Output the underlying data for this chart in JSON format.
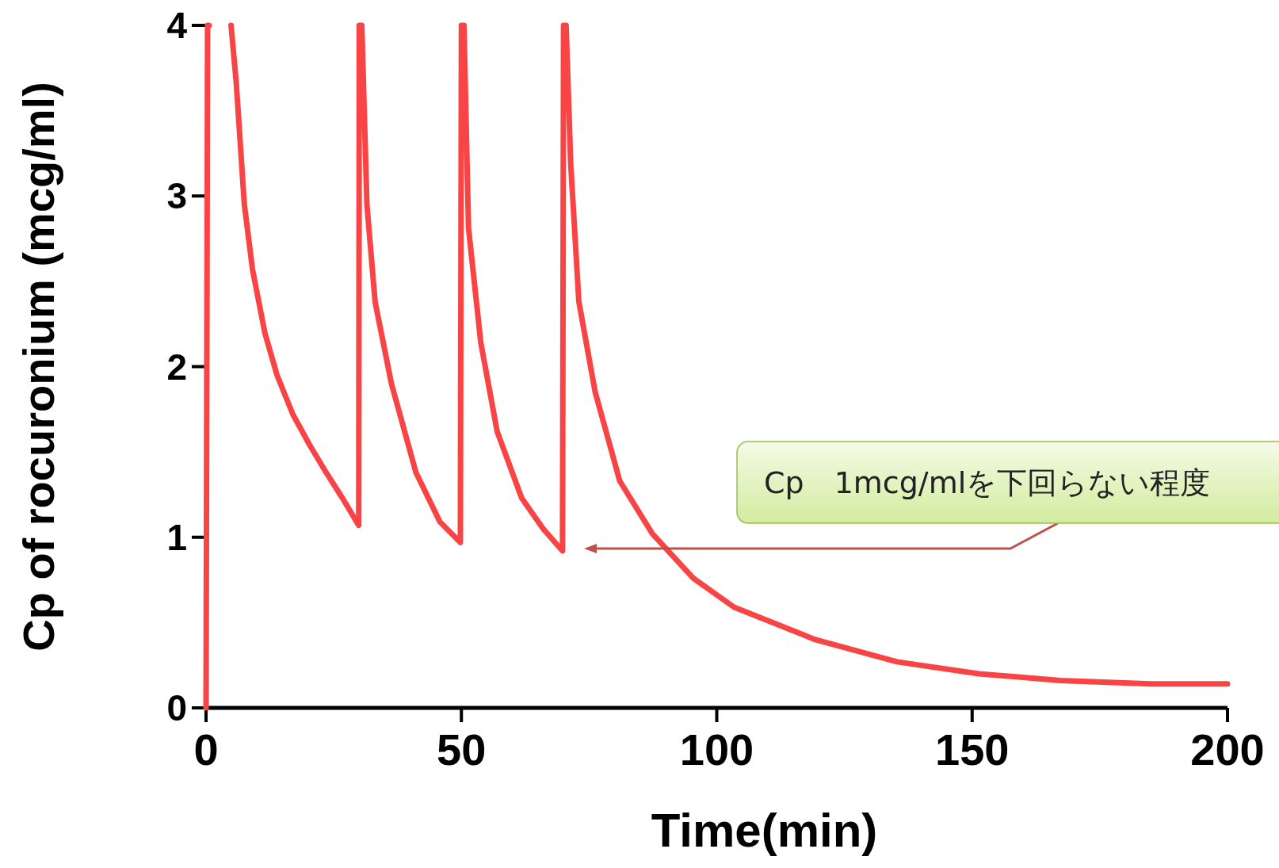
{
  "chart_data": {
    "type": "line",
    "xlabel": "Time(min)",
    "ylabel": "Cp of rocuronium (mcg/ml)",
    "xlim": [
      0,
      200
    ],
    "ylim": [
      0,
      4
    ],
    "xticks": [
      0,
      50,
      100,
      150,
      200
    ],
    "yticks": [
      0,
      1,
      2,
      3,
      4
    ],
    "grid": false,
    "marker": "none",
    "line_style": "solid",
    "annotations": [
      "Cp　1mcg/mlを下回らない程度"
    ],
    "series": [
      {
        "color": "#f84444",
        "x": [
          0,
          0.3,
          0.6,
          0.7,
          4.9,
          5.9,
          7.5,
          9.1,
          11.5,
          13.9,
          17,
          20.3,
          23.5,
          26.7,
          29.9,
          30,
          30.5,
          31.5,
          33.1,
          36.3,
          41.1,
          45.8,
          49.8,
          50,
          50.5,
          51.4,
          53.8,
          57,
          61.8,
          66,
          69.8,
          70,
          70.5,
          71.4,
          73,
          76.2,
          81,
          87.4,
          95.4,
          103.4,
          119.3,
          135.3,
          151.3,
          167.3,
          185,
          200
        ],
        "values": [
          0,
          4,
          4,
          null,
          4,
          3.67,
          2.95,
          2.57,
          2.2,
          1.95,
          1.72,
          1.54,
          1.38,
          1.23,
          1.07,
          4,
          4,
          2.95,
          2.38,
          1.9,
          1.38,
          1.09,
          0.97,
          4,
          4,
          2.81,
          2.14,
          1.62,
          1.23,
          1.05,
          0.92,
          4,
          4,
          3.19,
          2.38,
          1.85,
          1.33,
          1.02,
          0.76,
          0.59,
          0.4,
          0.27,
          0.2,
          0.16,
          0.14,
          0.14
        ]
      }
    ]
  }
}
